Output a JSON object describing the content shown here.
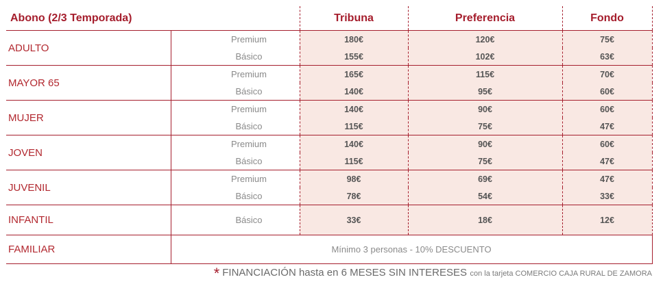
{
  "header": {
    "title": "Abono (2/3 Temporada)",
    "col_tribuna": "Tribuna",
    "col_preferencia": "Preferencia",
    "col_fondo": "Fondo"
  },
  "rows": [
    {
      "category": "ADULTO",
      "prices": [
        {
          "tipo": "Premium",
          "tribuna": "180€",
          "preferencia": "120€",
          "fondo": "75€"
        },
        {
          "tipo": "Básico",
          "tribuna": "155€",
          "preferencia": "102€",
          "fondo": "63€"
        }
      ]
    },
    {
      "category": "MAYOR 65",
      "prices": [
        {
          "tipo": "Premium",
          "tribuna": "165€",
          "preferencia": "115€",
          "fondo": "70€"
        },
        {
          "tipo": "Básico",
          "tribuna": "140€",
          "preferencia": "95€",
          "fondo": "60€"
        }
      ]
    },
    {
      "category": "MUJER",
      "prices": [
        {
          "tipo": "Premium",
          "tribuna": "140€",
          "preferencia": "90€",
          "fondo": "60€"
        },
        {
          "tipo": "Básico",
          "tribuna": "115€",
          "preferencia": "75€",
          "fondo": "47€"
        }
      ]
    },
    {
      "category": "JOVEN",
      "prices": [
        {
          "tipo": "Premium",
          "tribuna": "140€",
          "preferencia": "90€",
          "fondo": "60€"
        },
        {
          "tipo": "Básico",
          "tribuna": "115€",
          "preferencia": "75€",
          "fondo": "47€"
        }
      ]
    },
    {
      "category": "JUVENIL",
      "prices": [
        {
          "tipo": "Premium",
          "tribuna": "98€",
          "preferencia": "69€",
          "fondo": "47€"
        },
        {
          "tipo": "Básico",
          "tribuna": "78€",
          "preferencia": "54€",
          "fondo": "33€"
        }
      ]
    },
    {
      "category": "INFANTIL",
      "prices": [
        {
          "tipo": "Básico",
          "tribuna": "33€",
          "preferencia": "18€",
          "fondo": "12€"
        }
      ]
    }
  ],
  "familiar": {
    "category": "FAMILIAR",
    "note": "Mínimo 3 personas - 10% DESCUENTO"
  },
  "footer": {
    "star": "*",
    "main": "FINANCIACIÓN hasta en 6 MESES SIN INTERESES",
    "small": "con la tarjeta COMERCIO CAJA RURAL DE ZAMORA"
  },
  "colors": {
    "accent": "#a51d2c",
    "price_bg": "#f9e8e3"
  }
}
